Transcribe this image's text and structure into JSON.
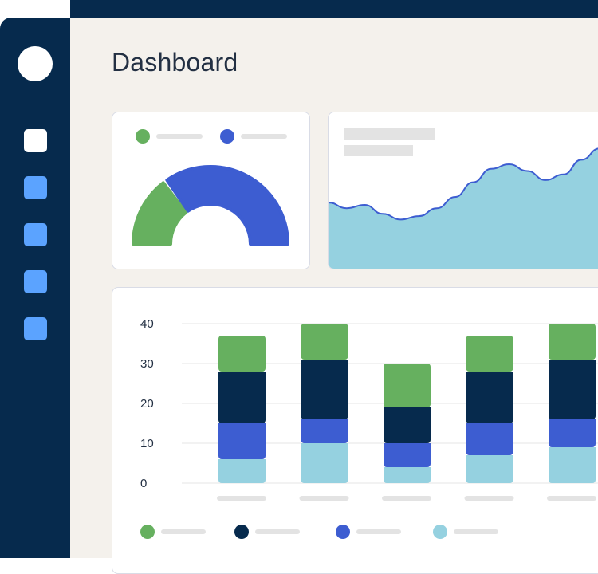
{
  "page": {
    "title": "Dashboard"
  },
  "sidebar": {
    "items": [
      {
        "icon": "square-icon",
        "active": true
      },
      {
        "icon": "square-icon",
        "active": false
      },
      {
        "icon": "square-icon",
        "active": false
      },
      {
        "icon": "square-icon",
        "active": false
      },
      {
        "icon": "square-icon",
        "active": false
      }
    ]
  },
  "colors": {
    "navy": "#062a4d",
    "green": "#66b05f",
    "blue": "#3d5dd1",
    "light_blue": "#95d1e0",
    "nav_item": "#5ba3ff",
    "background": "#f4f1ec"
  },
  "chart_data": [
    {
      "type": "pie",
      "variant": "half-donut",
      "series": [
        {
          "color": "#66b05f",
          "value": 30
        },
        {
          "color": "#3d5dd1",
          "value": 70
        }
      ]
    },
    {
      "type": "area",
      "color": "#95d1e0",
      "line_color": "#3d5dd1",
      "values": [
        60,
        55,
        58,
        50,
        45,
        48,
        55,
        65,
        78,
        90,
        94,
        88,
        80,
        85,
        98,
        108
      ]
    },
    {
      "type": "bar",
      "stacked": true,
      "ylim": [
        0,
        40
      ],
      "yticks": [
        "0",
        "10",
        "20",
        "30",
        "40"
      ],
      "grid": true,
      "series": [
        {
          "color": "#95d1e0",
          "values": [
            6,
            10,
            4,
            7,
            9
          ]
        },
        {
          "color": "#3d5dd1",
          "values": [
            9,
            6,
            6,
            8,
            7
          ]
        },
        {
          "color": "#062a4d",
          "values": [
            13,
            15,
            9,
            13,
            15
          ]
        },
        {
          "color": "#66b05f",
          "values": [
            9,
            9,
            11,
            9,
            9
          ]
        }
      ]
    }
  ]
}
